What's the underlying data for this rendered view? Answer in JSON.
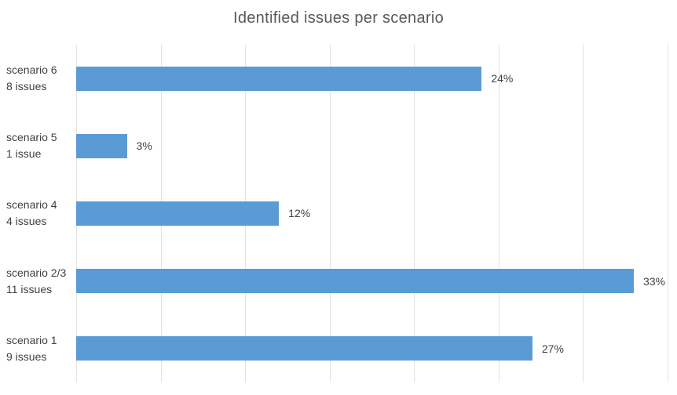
{
  "chart_data": {
    "type": "bar",
    "orientation": "horizontal",
    "title": "Identified issues per scenario",
    "categories": [
      "scenario 6",
      "scenario 5",
      "scenario 4",
      "scenario 2/3",
      "scenario 1"
    ],
    "category_sublabels": [
      "8 issues",
      "1 issue",
      "4 issues",
      "11 issues",
      "9 issues"
    ],
    "values": [
      24,
      3,
      12,
      33,
      27
    ],
    "value_labels": [
      "24%",
      "3%",
      "12%",
      "33%",
      "27%"
    ],
    "xlim": [
      0,
      35
    ],
    "grid_step": 5,
    "grid": "vertical-only",
    "x_tick_labels_visible": false,
    "legend": "none",
    "colors": {
      "bar": "#5B9BD5",
      "title": "#595959",
      "labels": "#404040",
      "gridlines": "#e2e2e2",
      "background": "#ffffff"
    }
  }
}
